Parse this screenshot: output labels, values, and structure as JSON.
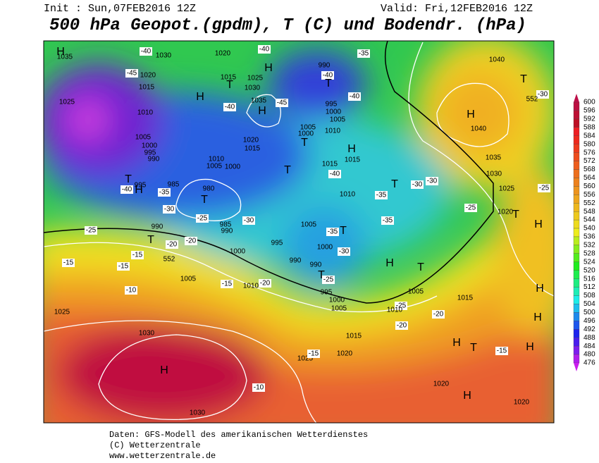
{
  "header": {
    "init": "Init : Sun,07FEB2016 12Z",
    "valid": "Valid: Fri,12FEB2016 12Z",
    "title": "500 hPa Geopot.(gpdm), T (C) und Bodendr. (hPa)"
  },
  "map": {
    "labels": [
      "H",
      "1035",
      "1030",
      "-40",
      "1020",
      "-40",
      "H",
      "990",
      "-40",
      "-35",
      "1025",
      "-45",
      "1020",
      "1015",
      "1010",
      "1015",
      "1025",
      "1030",
      "T",
      "H",
      "1035",
      "H",
      "-45",
      "-40",
      "995",
      "1000",
      "1005",
      "T",
      "-40",
      "1005",
      "1000",
      "T",
      "1010",
      "1020",
      "1015",
      "H",
      "1015",
      "1015",
      "-40",
      "T",
      "1010",
      "1005",
      "1000",
      "1005",
      "1000",
      "995",
      "990",
      "T",
      "H",
      "995",
      "-40",
      "-35",
      "985",
      "980",
      "T",
      "-30",
      "-25",
      "985",
      "990",
      "-30",
      "990",
      "T",
      "-25",
      "-20",
      "-20",
      "-15",
      "552",
      "-15",
      "-15",
      "1000",
      "995",
      "1005",
      "-15",
      "1010",
      "-20",
      "990",
      "1005",
      "T",
      "-35",
      "1000",
      "-30",
      "990",
      "T",
      "-25",
      "995",
      "1000",
      "1005",
      "1010",
      "-35",
      "-35",
      "T",
      "-30",
      "-30",
      "-25",
      "H",
      "T",
      "1005",
      "-25",
      "1010",
      "-20",
      "-20",
      "1015",
      "1040",
      "T",
      "-30",
      "552",
      "H",
      "1040",
      "1035",
      "1030",
      "1025",
      "-25",
      "1020",
      "T",
      "H",
      "H",
      "H",
      "1025",
      "-10",
      "1030",
      "H",
      "-10",
      "1030",
      "1015",
      "1020",
      "1025",
      "-15",
      "H",
      "T",
      "-15",
      "H",
      "H",
      "1020",
      "1020"
    ]
  },
  "legend": {
    "levels": [
      600,
      596,
      592,
      588,
      584,
      580,
      576,
      572,
      568,
      564,
      560,
      556,
      552,
      548,
      544,
      540,
      536,
      532,
      528,
      524,
      520,
      516,
      512,
      508,
      504,
      500,
      496,
      492,
      488,
      484,
      480,
      476
    ]
  },
  "footer": {
    "source": "Daten: GFS-Modell des amerikanischen Wetterdienstes",
    "copyright": "(C) Wetterzentrale",
    "url": "www.wetterzentrale.de"
  }
}
